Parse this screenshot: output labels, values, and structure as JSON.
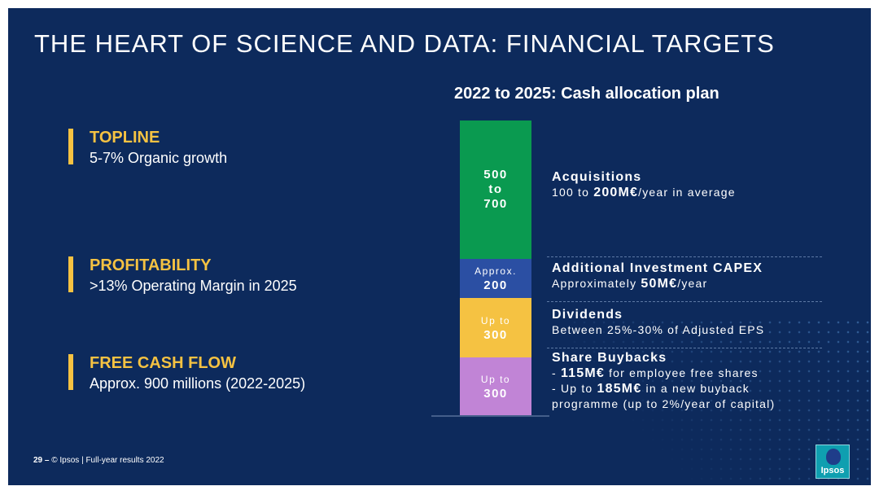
{
  "slide_title": "THE HEART OF SCIENCE AND DATA: FINANCIAL TARGETS",
  "targets": [
    {
      "label": "TOPLINE",
      "desc": "5-7% Organic growth"
    },
    {
      "label": "PROFITABILITY",
      "desc": ">13% Operating Margin in 2025"
    },
    {
      "label": "FREE CASH FLOW",
      "desc": "Approx. 900 millions (2022-2025)"
    }
  ],
  "colors": {
    "background": "#0d2a5c",
    "accent": "#f5c242",
    "acquisitions": "#0a9a50",
    "capex": "#2b4fa3",
    "dividends": "#f5c242",
    "buybacks": "#c184d6"
  },
  "chart_data": {
    "type": "bar",
    "title": "2022 to 2025: Cash allocation plan",
    "stacked": true,
    "segments": [
      {
        "lines": [
          "500",
          "to",
          "700"
        ],
        "value": 600,
        "color": "#0a9a50",
        "text_color": "#ffffff"
      },
      {
        "lines": [
          "Approx.",
          "200"
        ],
        "value": 200,
        "color": "#2b4fa3",
        "text_color": "#ffffff"
      },
      {
        "lines": [
          "Up to",
          "300"
        ],
        "value": 300,
        "color": "#f5c242",
        "text_color": "#ffffff"
      },
      {
        "lines": [
          "Up to",
          "300"
        ],
        "value": 300,
        "color": "#c184d6",
        "text_color": "#ffffff"
      }
    ],
    "categories": [
      {
        "head": "Acquisitions",
        "lines": [
          "100 to 200M€/year in average"
        ]
      },
      {
        "head": "Additional Investment CAPEX",
        "lines": [
          "Approximately 50M€/year"
        ]
      },
      {
        "head": "Dividends",
        "lines": [
          "Between 25%-30% of Adjusted EPS"
        ]
      },
      {
        "head": "Share Buybacks",
        "lines": [
          "- 115M€ for employee free shares",
          "- Up to 185M€ in a new buyback",
          "programme (up to 2%/year of capital)"
        ]
      }
    ]
  },
  "footer": {
    "page": "29 –",
    "text": "© Ipsos | Full-year results 2022"
  },
  "logo": {
    "text": "Ipsos"
  }
}
